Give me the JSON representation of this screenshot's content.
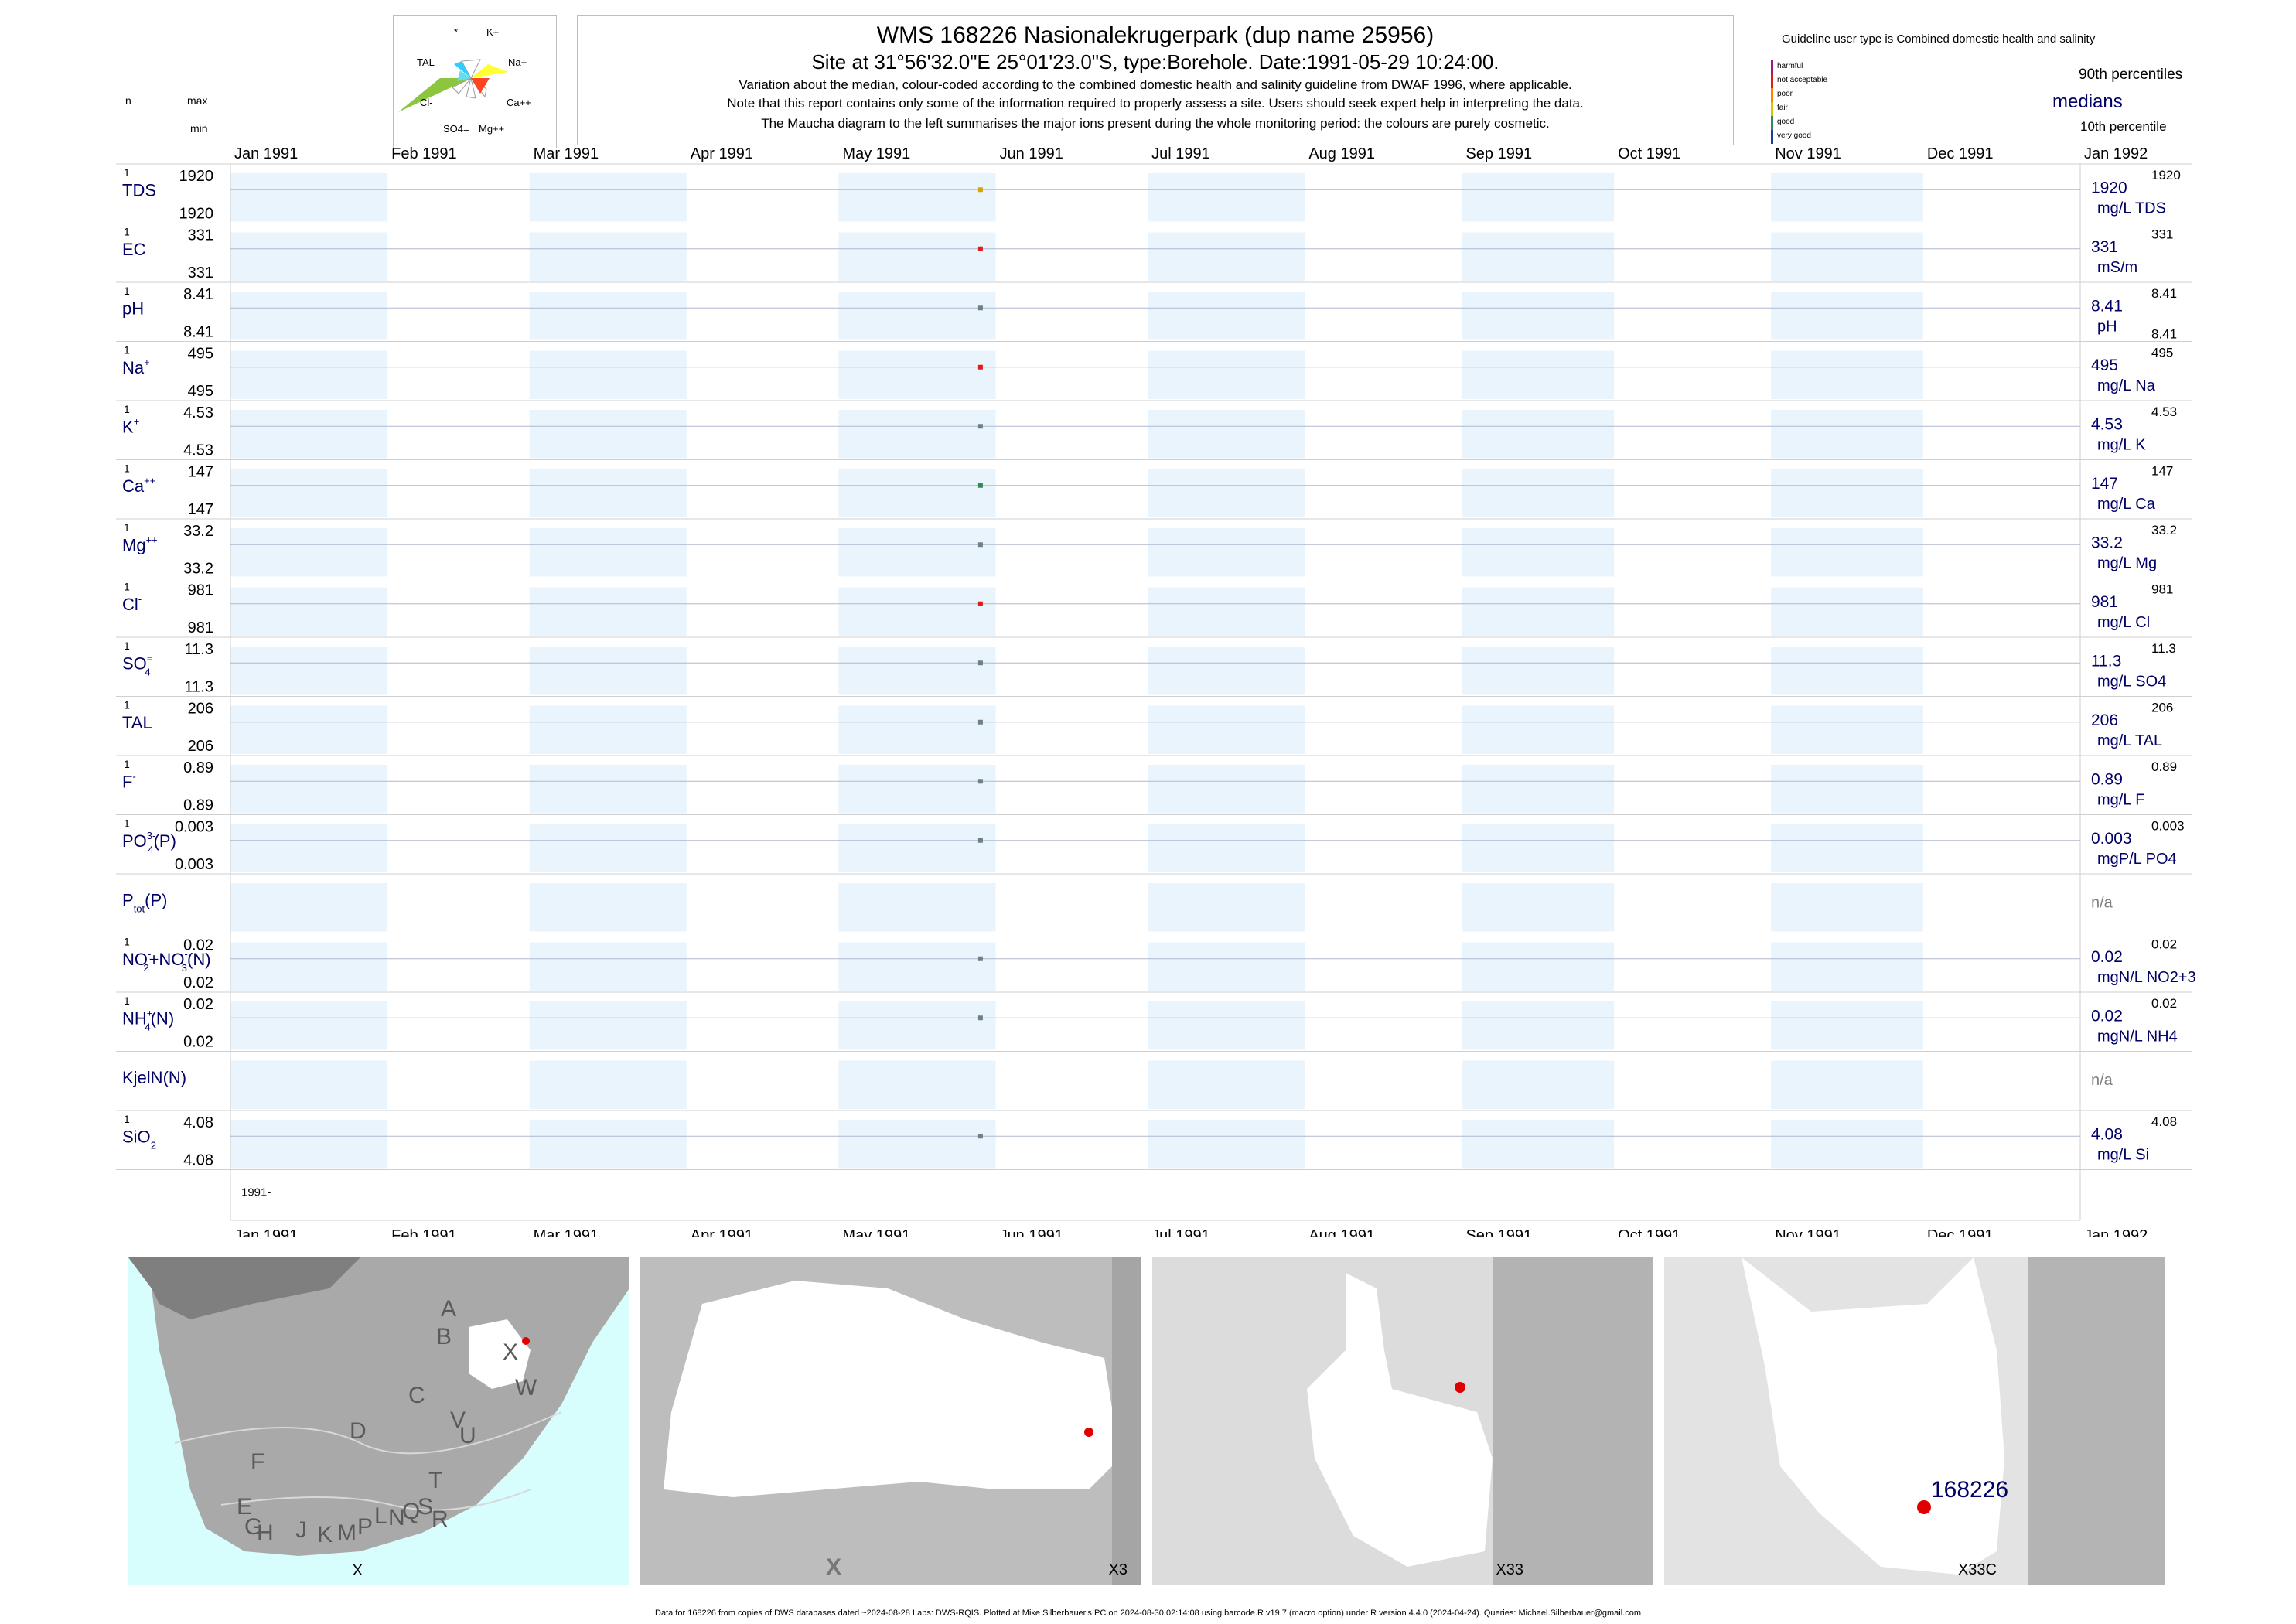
{
  "header": {
    "title": "WMS 168226  Nasionalekrugerpark (dup name 25956)",
    "site": "Site at 31°56'32.0\"E 25°01'23.0\"S, type:Borehole. Date:1991-05-29 10:24:00.",
    "notes": [
      "Variation about the median,  colour-coded according to the combined domestic health and salinity guideline from DWAF 1996, where applicable.",
      "Note that this report contains only some of the information required to properly assess a site. Users should seek expert help in interpreting the data.",
      "The Maucha diagram to the left summarises the major ions present during the whole monitoring period: the colours are purely cosmetic."
    ]
  },
  "left_header": {
    "n": "n",
    "max": "max",
    "min": "min"
  },
  "maucha": {
    "labels": [
      "*",
      "K+",
      "TAL",
      "Na+",
      "Cl-",
      "Ca++",
      "SO4=",
      "Mg++"
    ]
  },
  "guideline": {
    "title": "Guideline user type is Combined domestic health and salinity",
    "legend": [
      {
        "label": "harmful",
        "color": "#9c1a7a"
      },
      {
        "label": "not acceptable",
        "color": "#e31a1c"
      },
      {
        "label": "poor",
        "color": "#ff7f00"
      },
      {
        "label": "fair",
        "color": "#d8c400"
      },
      {
        "label": "good",
        "color": "#2e8b57"
      },
      {
        "label": "very good",
        "color": "#1f3b9b"
      }
    ],
    "p90": "90th percentiles",
    "medians": "medians",
    "p10": "10th percentile"
  },
  "chart_data": {
    "type": "scatter",
    "x_axis": {
      "range": [
        "1991-01-01",
        "1992-01-01"
      ],
      "ticks": [
        "Jan 1991",
        "Feb 1991",
        "Mar 1991",
        "Apr 1991",
        "May 1991",
        "Jun 1991",
        "Jul 1991",
        "Aug 1991",
        "Sep 1991",
        "Oct 1991",
        "Nov 1991",
        "Dec 1991",
        "Jan 1992"
      ],
      "year_label": "1991-"
    },
    "sample_date": "1991-05-29",
    "series": [
      {
        "name": "TDS",
        "sup": "",
        "sub": "",
        "n": "1",
        "max": "1920",
        "min": "1920",
        "median": "1920",
        "p90": "1920",
        "p10": "",
        "unit": "mg/L TDS",
        "color": "#d8a400"
      },
      {
        "name": "EC",
        "sup": "",
        "sub": "",
        "n": "1",
        "max": "331",
        "min": "331",
        "median": "331",
        "p90": "331",
        "p10": "",
        "unit": "mS/m",
        "color": "#e31a1c"
      },
      {
        "name": "pH",
        "sup": "",
        "sub": "",
        "n": "1",
        "max": "8.41",
        "min": "8.41",
        "median": "8.41",
        "p90": "8.41",
        "p10": "8.41",
        "unit": "pH",
        "color": "#708080"
      },
      {
        "name": "Na",
        "sup": "+",
        "sub": "",
        "n": "1",
        "max": "495",
        "min": "495",
        "median": "495",
        "p90": "495",
        "p10": "",
        "unit": "mg/L Na",
        "color": "#e31a1c"
      },
      {
        "name": "K",
        "sup": "+",
        "sub": "",
        "n": "1",
        "max": "4.53",
        "min": "4.53",
        "median": "4.53",
        "p90": "4.53",
        "p10": "",
        "unit": "mg/L K",
        "color": "#708080"
      },
      {
        "name": "Ca",
        "sup": "++",
        "sub": "",
        "n": "1",
        "max": "147",
        "min": "147",
        "median": "147",
        "p90": "147",
        "p10": "",
        "unit": "mg/L Ca",
        "color": "#2e8b57"
      },
      {
        "name": "Mg",
        "sup": "++",
        "sub": "",
        "n": "1",
        "max": "33.2",
        "min": "33.2",
        "median": "33.2",
        "p90": "33.2",
        "p10": "",
        "unit": "mg/L Mg",
        "color": "#708080"
      },
      {
        "name": "Cl",
        "sup": "-",
        "sub": "",
        "n": "1",
        "max": "981",
        "min": "981",
        "median": "981",
        "p90": "981",
        "p10": "",
        "unit": "mg/L Cl",
        "color": "#e31a1c"
      },
      {
        "name": "SO",
        "sup": "=",
        "sub": "4",
        "n": "1",
        "max": "11.3",
        "min": "11.3",
        "median": "11.3",
        "p90": "11.3",
        "p10": "",
        "unit": "mg/L SO4",
        "color": "#708080"
      },
      {
        "name": "TAL",
        "sup": "",
        "sub": "",
        "n": "1",
        "max": "206",
        "min": "206",
        "median": "206",
        "p90": "206",
        "p10": "",
        "unit": "mg/L TAL",
        "color": "#708080"
      },
      {
        "name": "F",
        "sup": "-",
        "sub": "",
        "n": "1",
        "max": "0.89",
        "min": "0.89",
        "median": "0.89",
        "p90": "0.89",
        "p10": "",
        "unit": "mg/L F",
        "color": "#708080"
      },
      {
        "name": "PO",
        "sup": "3-",
        "sub": "4",
        "suffix": "(P)",
        "n": "1",
        "max": "0.003",
        "min": "0.003",
        "median": "0.003",
        "p90": "0.003",
        "p10": "",
        "unit": "mgP/L PO4",
        "color": "#708080"
      },
      {
        "name": "P",
        "sup": "",
        "sub": "tot",
        "suffix": "(P)",
        "n": "",
        "max": "",
        "min": "",
        "median": "n/a",
        "p90": "",
        "p10": "",
        "unit": "",
        "color": ""
      },
      {
        "name": "NO",
        "sup": "-",
        "sub": "2",
        "suffix": "+NO",
        "suffix_sup": "-",
        "suffix_sub": "3",
        "suffix2": "(N)",
        "n": "1",
        "max": "0.02",
        "min": "0.02",
        "median": "0.02",
        "p90": "0.02",
        "p10": "",
        "unit": "mgN/L NO2+3",
        "color": "#708080"
      },
      {
        "name": "NH",
        "sup": "+",
        "sub": "4",
        "suffix": "(N)",
        "n": "1",
        "max": "0.02",
        "min": "0.02",
        "median": "0.02",
        "p90": "0.02",
        "p10": "",
        "unit": "mgN/L NH4",
        "color": "#708080"
      },
      {
        "name": "KjelN(N)",
        "sup": "",
        "sub": "",
        "n": "",
        "max": "",
        "min": "",
        "median": "n/a",
        "p90": "",
        "p10": "",
        "unit": "",
        "color": ""
      },
      {
        "name": "SiO",
        "sup": "",
        "sub": "2",
        "n": "1",
        "max": "4.08",
        "min": "4.08",
        "median": "4.08",
        "p90": "4.08",
        "p10": "",
        "unit": "mg/L Si",
        "color": "#708080"
      }
    ]
  },
  "maps": [
    {
      "label": "X",
      "letters": [
        "A",
        "B",
        "X",
        "W",
        "C",
        "D",
        "V",
        "U",
        "F",
        "T",
        "E",
        "L",
        "N",
        "Q",
        "S",
        "R",
        "G",
        "H",
        "J",
        "K",
        "M",
        "P"
      ]
    },
    {
      "label": "X3",
      "letters": [
        "X"
      ]
    },
    {
      "label": "X33",
      "letters": []
    },
    {
      "label": "X33C",
      "site_label": "168226"
    }
  ],
  "footer": "Data for 168226 from copies of DWS databases dated ~2024-08-28 Labs: DWS-RQIS. Plotted at Mike Silberbauer's PC on 2024-08-30 02:14:08 using barcode.R v19.7 (macro option) under R version 4.4.0 (2024-04-24). Queries: Michael.Silberbauer@gmail.com"
}
